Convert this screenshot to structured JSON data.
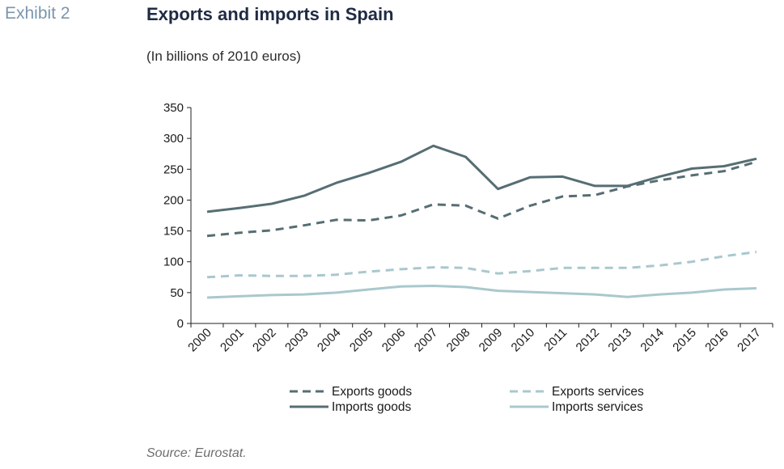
{
  "header": {
    "exhibit": "Exhibit 2",
    "title": "Exports and imports in Spain",
    "subtitle": "(In billions of 2010 euros)"
  },
  "footer": {
    "source": "Source: Eurostat."
  },
  "chart_data": {
    "type": "line",
    "categories": [
      "2000",
      "2001",
      "2002",
      "2003",
      "2004",
      "2005",
      "2006",
      "2007",
      "2008",
      "2009",
      "2010",
      "2011",
      "2012",
      "2013",
      "2014",
      "2015",
      "2016",
      "2017"
    ],
    "ylim": [
      0,
      350
    ],
    "yticks": [
      0,
      50,
      100,
      150,
      200,
      250,
      300,
      350
    ],
    "grid": false,
    "legend_position": "bottom",
    "series": [
      {
        "name": "Exports goods",
        "color": "#566e73",
        "dash": true,
        "values": [
          142,
          147,
          151,
          159,
          168,
          167,
          175,
          193,
          191,
          170,
          191,
          206,
          208,
          222,
          232,
          240,
          247,
          262
        ]
      },
      {
        "name": "Exports services",
        "color": "#a9c8cd",
        "dash": true,
        "values": [
          75,
          78,
          77,
          77,
          79,
          84,
          88,
          91,
          90,
          81,
          85,
          90,
          90,
          90,
          94,
          100,
          109,
          116
        ]
      },
      {
        "name": "Imports goods",
        "color": "#566e73",
        "dash": false,
        "values": [
          181,
          187,
          194,
          207,
          228,
          244,
          262,
          288,
          270,
          218,
          237,
          238,
          223,
          223,
          238,
          251,
          255,
          267
        ]
      },
      {
        "name": "Imports services",
        "color": "#a9c8cd",
        "dash": false,
        "values": [
          42,
          44,
          46,
          47,
          50,
          55,
          60,
          61,
          59,
          53,
          51,
          49,
          47,
          43,
          47,
          50,
          55,
          57
        ]
      }
    ]
  }
}
